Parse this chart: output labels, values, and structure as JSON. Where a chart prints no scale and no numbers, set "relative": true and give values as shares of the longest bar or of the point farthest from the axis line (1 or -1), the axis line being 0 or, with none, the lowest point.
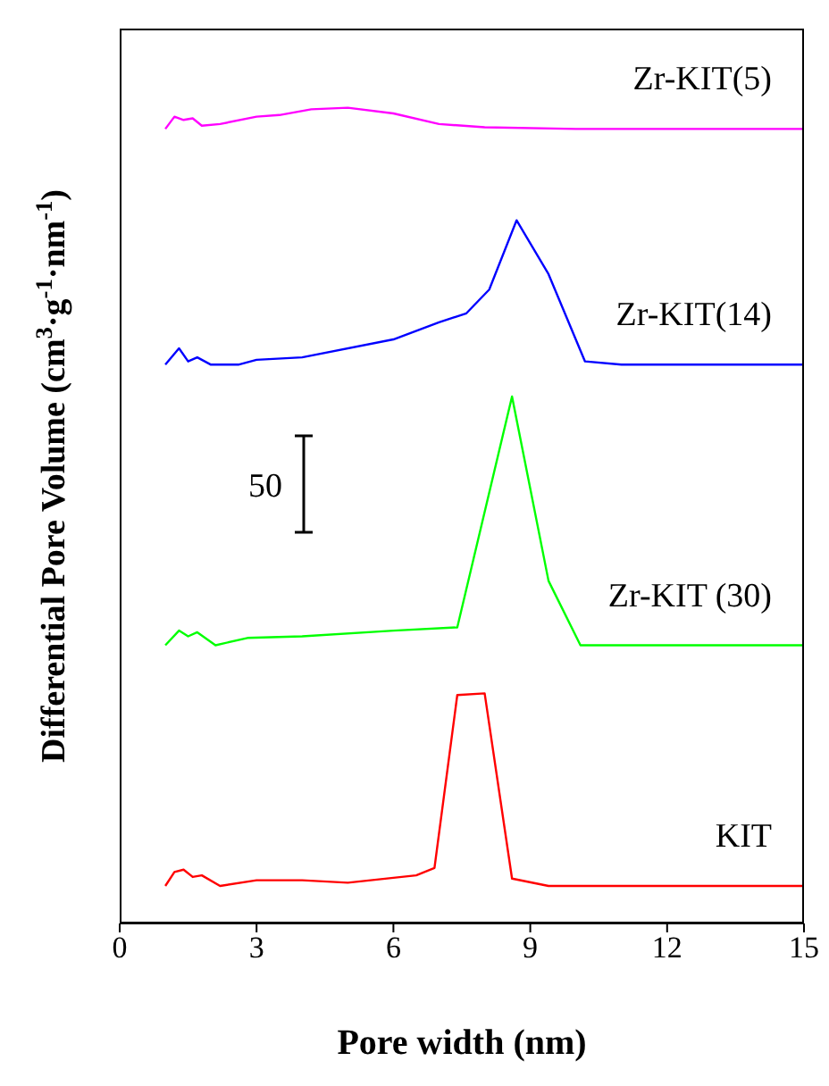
{
  "chart_data": {
    "type": "line",
    "relative": true,
    "xlabel": "Pore width (nm)",
    "ylabel": "Differential Pore Volume (cm$^{3}$·g$^{-1}$·nm$^{-1}$)",
    "xlim": [
      0,
      15
    ],
    "xticks": [
      0,
      3,
      6,
      9,
      12,
      15
    ],
    "annotations": [
      "50"
    ],
    "marker": "none",
    "series": [
      {
        "name": "Zr-KIT(5)",
        "color": "#ff00ff",
        "x": [
          1.0,
          1.2,
          1.4,
          1.6,
          1.8,
          2.2,
          3,
          3.5,
          4.2,
          5,
          6,
          7,
          8,
          10,
          15
        ],
        "values": [
          0.974,
          0.989,
          0.985,
          0.987,
          0.978,
          0.98,
          0.989,
          0.991,
          0.998,
          1,
          0.993,
          0.98,
          0.976,
          0.974,
          0.974
        ]
      },
      {
        "name": "Zr-KIT(14)",
        "color": "#0000ff",
        "x": [
          1.0,
          1.3,
          1.5,
          1.7,
          2,
          2.6,
          3,
          4,
          6,
          7,
          7.6,
          8.1,
          8.7,
          9.4,
          10.2,
          11,
          15
        ],
        "values": [
          0.685,
          0.705,
          0.689,
          0.694,
          0.685,
          0.685,
          0.691,
          0.694,
          0.716,
          0.737,
          0.748,
          0.777,
          0.862,
          0.796,
          0.689,
          0.685,
          0.685
        ]
      },
      {
        "name": "Zr-KIT (30)",
        "color": "#00ff00",
        "x": [
          1.0,
          1.3,
          1.5,
          1.7,
          2.1,
          2.8,
          4,
          6,
          7.4,
          8.6,
          9.4,
          10.1,
          15
        ],
        "values": [
          0.341,
          0.359,
          0.352,
          0.357,
          0.341,
          0.35,
          0.352,
          0.359,
          0.363,
          0.646,
          0.42,
          0.341,
          0.341
        ]
      },
      {
        "name": "KIT",
        "color": "#ff0000",
        "x": [
          1.0,
          1.2,
          1.4,
          1.6,
          1.8,
          2.2,
          3,
          4,
          5,
          6.5,
          6.9,
          7.4,
          8.0,
          8.6,
          9.4,
          15
        ],
        "values": [
          0.046,
          0.063,
          0.066,
          0.057,
          0.059,
          0.046,
          0.053,
          0.053,
          0.05,
          0.059,
          0.068,
          0.28,
          0.282,
          0.055,
          0.046,
          0.046
        ]
      }
    ]
  }
}
